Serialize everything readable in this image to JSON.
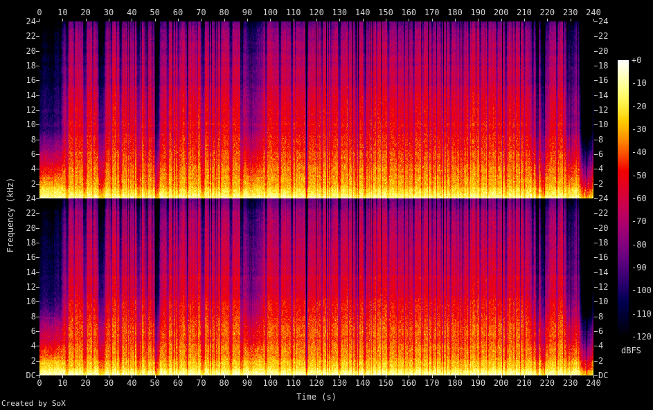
{
  "credit": "Created by SoX",
  "chart_data": {
    "type": "heatmap",
    "subtype": "audio-spectrogram-stereo",
    "tool": "SoX spectrogram",
    "xlabel": "Time (s)",
    "ylabel": "Frequency (kHz)",
    "x_range_s": [
      0,
      240
    ],
    "x_tick_step_s": 10,
    "x_ticks": [
      "0",
      "10",
      "20",
      "30",
      "40",
      "50",
      "60",
      "70",
      "80",
      "90",
      "100",
      "110",
      "120",
      "130",
      "140",
      "150",
      "160",
      "170",
      "180",
      "190",
      "200",
      "210",
      "220",
      "230",
      "240"
    ],
    "channels": [
      "left",
      "right"
    ],
    "freq_range_khz": [
      0,
      24
    ],
    "freq_ticks": [
      "24",
      "22",
      "20",
      "18",
      "16",
      "14",
      "12",
      "10",
      "8",
      "6",
      "4",
      "2"
    ],
    "dc_label": "DC",
    "colorbar": {
      "label": "dBFS",
      "ticks": [
        "+0",
        "-10",
        "-20",
        "-30",
        "-40",
        "-50",
        "-60",
        "-70",
        "-80",
        "-90",
        "-100",
        "-110",
        "-120"
      ],
      "range_db": [
        0,
        -120
      ],
      "palette": "black-indigo-magenta-red-orange-yellow-white"
    },
    "content_model": {
      "level_at_dc_db": -5,
      "level_at_24khz_db": -74,
      "spectral_slope_exp": 0.72,
      "bass_boost_db": 17,
      "texture_noise_db": 11,
      "quiet_regions": [
        [
          11.8,
          0.8,
          36
        ],
        [
          15,
          0.4,
          26
        ],
        [
          19.6,
          1.0,
          40
        ],
        [
          23,
          0.4,
          28
        ],
        [
          26.8,
          1.8,
          34
        ],
        [
          31,
          0.5,
          30
        ],
        [
          35,
          0.7,
          36
        ],
        [
          42.8,
          1.1,
          40
        ],
        [
          46,
          0.4,
          26
        ],
        [
          50.8,
          1.3,
          42
        ],
        [
          55.5,
          0.5,
          28
        ],
        [
          60,
          0.4,
          22
        ],
        [
          64,
          0.5,
          28
        ],
        [
          70.6,
          1.1,
          40
        ],
        [
          76,
          0.4,
          26
        ],
        [
          82.8,
          0.8,
          36
        ],
        [
          87.6,
          0.7,
          30
        ],
        [
          98,
          0.5,
          28
        ],
        [
          104,
          0.6,
          32
        ],
        [
          109,
          0.4,
          26
        ],
        [
          115.6,
          0.8,
          36
        ],
        [
          122,
          0.4,
          24
        ],
        [
          126,
          0.4,
          22
        ],
        [
          129.8,
          0.8,
          34
        ],
        [
          133.6,
          0.4,
          24
        ],
        [
          137,
          0.5,
          26
        ],
        [
          140.8,
          0.8,
          32
        ],
        [
          146,
          0.4,
          24
        ],
        [
          151,
          0.6,
          30
        ],
        [
          155,
          0.4,
          22
        ],
        [
          158,
          0.4,
          24
        ],
        [
          162,
          0.5,
          28
        ],
        [
          166,
          0.4,
          22
        ],
        [
          170,
          0.5,
          26
        ],
        [
          174,
          0.4,
          24
        ],
        [
          178,
          0.5,
          26
        ],
        [
          182,
          0.4,
          22
        ],
        [
          186,
          0.5,
          26
        ],
        [
          190.6,
          0.4,
          24
        ],
        [
          194,
          0.5,
          28
        ],
        [
          198,
          0.4,
          22
        ],
        [
          202,
          0.6,
          30
        ],
        [
          206,
          0.4,
          24
        ],
        [
          210,
          0.5,
          28
        ],
        [
          213.6,
          0.4,
          26
        ],
        [
          215.4,
          0.7,
          38
        ],
        [
          218,
          1.2,
          46
        ],
        [
          224,
          0.5,
          30
        ],
        [
          228.6,
          0.5,
          26
        ],
        [
          236.8,
          3.4,
          58
        ]
      ],
      "muffled_regions": [
        [
          -1,
          10,
          48
        ],
        [
          25,
          29,
          14
        ],
        [
          50,
          52.5,
          24
        ],
        [
          88,
          96,
          22
        ],
        [
          212,
          221,
          14
        ],
        [
          228,
          234,
          26
        ],
        [
          234,
          241,
          46
        ]
      ],
      "seed": 7
    }
  }
}
